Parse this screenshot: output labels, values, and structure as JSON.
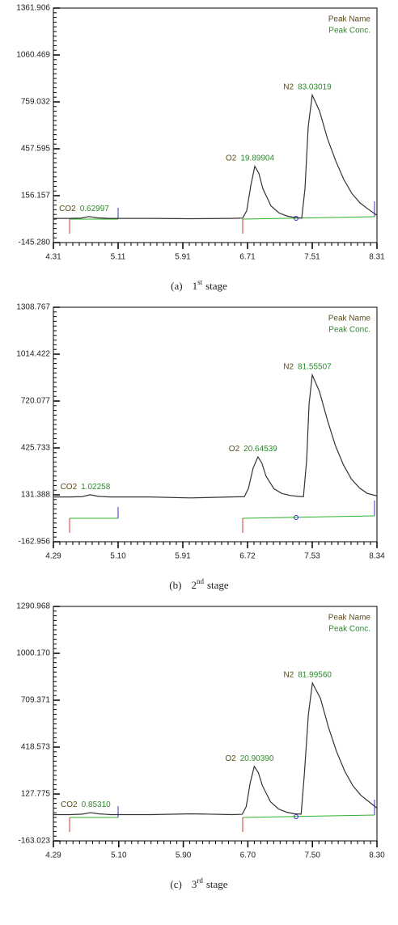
{
  "chart_data": [
    {
      "type": "line",
      "ylim": [
        -145.28,
        1361.906
      ],
      "yticks": [
        {
          "value": -145.28,
          "label": "-145.280"
        },
        156.157,
        457.595,
        759.032,
        1060.469,
        1361.906
      ],
      "xlim": [
        4.31,
        8.31
      ],
      "xticks": [
        4.31,
        5.11,
        5.91,
        6.71,
        7.51,
        8.31
      ],
      "legend": [
        "Peak Name",
        "Peak Conc."
      ],
      "peaks": [
        {
          "name": "CO2",
          "x": 4.75,
          "value": 0.62997
        },
        {
          "name": "O2",
          "x": 6.8,
          "value": 19.89904
        },
        {
          "name": "N2",
          "x": 7.51,
          "value": 83.03019
        }
      ],
      "series": [
        {
          "color": "#333333",
          "x": [
            4.31,
            4.5,
            4.65,
            4.75,
            4.85,
            5.0,
            5.5,
            6.0,
            6.5,
            6.65,
            6.7,
            6.75,
            6.8,
            6.85,
            6.9,
            7.0,
            7.1,
            7.2,
            7.3,
            7.38,
            7.42,
            7.46,
            7.51,
            7.6,
            7.7,
            7.8,
            7.9,
            8.0,
            8.1,
            8.2,
            8.31
          ],
          "values": [
            10,
            10,
            12,
            22,
            14,
            10,
            10,
            8,
            10,
            12,
            60,
            220,
            345,
            300,
            200,
            90,
            45,
            25,
            15,
            12,
            200,
            600,
            803,
            700,
            520,
            380,
            260,
            170,
            110,
            70,
            30
          ]
        }
      ],
      "caption": {
        "label": "(a)",
        "number": "1",
        "suffix": "st",
        "text": "stage"
      }
    },
    {
      "type": "line",
      "ylim": [
        -162.956,
        1308.767
      ],
      "yticks": [
        -162.956,
        131.388,
        425.733,
        720.077,
        1014.422,
        1308.767
      ],
      "xlim": [
        4.29,
        8.34
      ],
      "xticks": [
        4.29,
        {
          "value": 5.1,
          "label": "5.10"
        },
        5.91,
        6.72,
        7.53,
        8.34
      ],
      "legend": [
        "Peak Name",
        "Peak Conc."
      ],
      "peaks": [
        {
          "name": "CO2",
          "x": 4.75,
          "value": 1.02258
        },
        {
          "name": "O2",
          "x": 6.85,
          "value": 20.64539
        },
        {
          "name": "N2",
          "x": 7.53,
          "value": 81.55507
        }
      ],
      "series": [
        {
          "color": "#333333",
          "x": [
            4.29,
            4.5,
            4.65,
            4.75,
            4.85,
            5.0,
            5.5,
            6.0,
            6.5,
            6.68,
            6.73,
            6.79,
            6.85,
            6.9,
            6.95,
            7.05,
            7.15,
            7.25,
            7.35,
            7.42,
            7.46,
            7.49,
            7.53,
            7.62,
            7.72,
            7.82,
            7.92,
            8.02,
            8.12,
            8.22,
            8.34
          ],
          "values": [
            118,
            118,
            120,
            132,
            122,
            118,
            118,
            112,
            118,
            120,
            170,
            300,
            370,
            330,
            250,
            170,
            140,
            128,
            122,
            120,
            350,
            700,
            884,
            780,
            600,
            440,
            320,
            230,
            175,
            140,
            125
          ]
        }
      ],
      "caption": {
        "label": "(b)",
        "number": "2",
        "suffix": "nd",
        "text": "stage"
      }
    },
    {
      "type": "line",
      "ylim": [
        -163.023,
        1290.968
      ],
      "yticks": [
        -163.023,
        127.775,
        418.573,
        709.371,
        {
          "value": 1000.17,
          "label": "1000.170"
        },
        1290.968
      ],
      "xlim": [
        4.29,
        8.3
      ],
      "xticks": [
        4.29,
        {
          "value": 5.1,
          "label": "5.10"
        },
        {
          "value": 5.9,
          "label": "5.90"
        },
        {
          "value": 6.7,
          "label": "6.70"
        },
        {
          "value": 7.5,
          "label": "7.50"
        },
        {
          "value": 8.3,
          "label": "8.30"
        }
      ],
      "legend": [
        "Peak Name",
        "Peak Conc."
      ],
      "peaks": [
        {
          "name": "CO2",
          "x": 4.75,
          "value": {
            "value": 0.8531,
            "label": "0.85310"
          }
        },
        {
          "name": "O2",
          "x": 6.78,
          "value": {
            "value": 20.9039,
            "label": "20.90390"
          }
        },
        {
          "name": "N2",
          "x": 7.5,
          "value": {
            "value": 81.9956,
            "label": "81.99560"
          }
        }
      ],
      "series": [
        {
          "color": "#333333",
          "x": [
            4.29,
            4.5,
            4.65,
            4.75,
            4.85,
            5.0,
            5.5,
            6.0,
            6.5,
            6.63,
            6.68,
            6.73,
            6.78,
            6.83,
            6.88,
            6.98,
            7.08,
            7.18,
            7.28,
            7.36,
            7.4,
            7.45,
            7.5,
            7.6,
            7.7,
            7.8,
            7.9,
            8.0,
            8.1,
            8.2,
            8.3
          ],
          "values": [
            0,
            0,
            3,
            12,
            5,
            0,
            0,
            5,
            0,
            2,
            50,
            200,
            299,
            260,
            180,
            80,
            35,
            15,
            5,
            3,
            250,
            620,
            816,
            720,
            540,
            390,
            270,
            180,
            120,
            80,
            40
          ]
        }
      ],
      "caption": {
        "label": "(c)",
        "number": "3",
        "suffix": "rd",
        "text": "stage"
      }
    }
  ]
}
